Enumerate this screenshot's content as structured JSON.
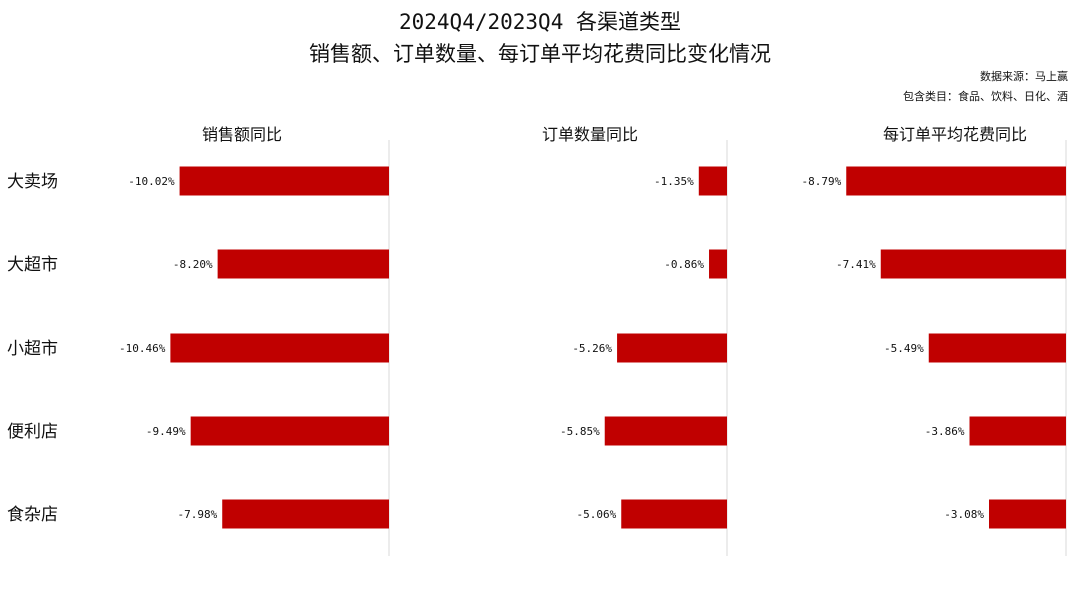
{
  "title_line1": "2024Q4/2023Q4 各渠道类型",
  "title_line2": "销售额、订单数量、每订单平均花费同比变化情况",
  "source": "数据来源：马上赢",
  "categories_note": "包含类目：食品、饮料、日化、酒",
  "bar_color": "#c00000",
  "chart_data": {
    "type": "bar",
    "orientation": "horizontal",
    "categories": [
      "大卖场",
      "大超市",
      "小超市",
      "便利店",
      "食杂店"
    ],
    "panels": [
      {
        "title": "销售额同比",
        "values": [
          -10.02,
          -8.2,
          -10.46,
          -9.49,
          -7.98
        ],
        "labels": [
          "-10.02%",
          "-8.20%",
          "-10.46%",
          "-9.49%",
          "-7.98%"
        ]
      },
      {
        "title": "订单数量同比",
        "values": [
          -1.35,
          -0.86,
          -5.26,
          -5.85,
          -5.06
        ],
        "labels": [
          "-1.35%",
          "-0.86%",
          "-5.26%",
          "-5.85%",
          "-5.06%"
        ]
      },
      {
        "title": "每订单平均花费同比",
        "values": [
          -8.79,
          -7.41,
          -5.49,
          -3.86,
          -3.08
        ],
        "labels": [
          "-8.79%",
          "-7.41%",
          "-5.49%",
          "-3.86%",
          "-3.08%"
        ]
      }
    ]
  }
}
